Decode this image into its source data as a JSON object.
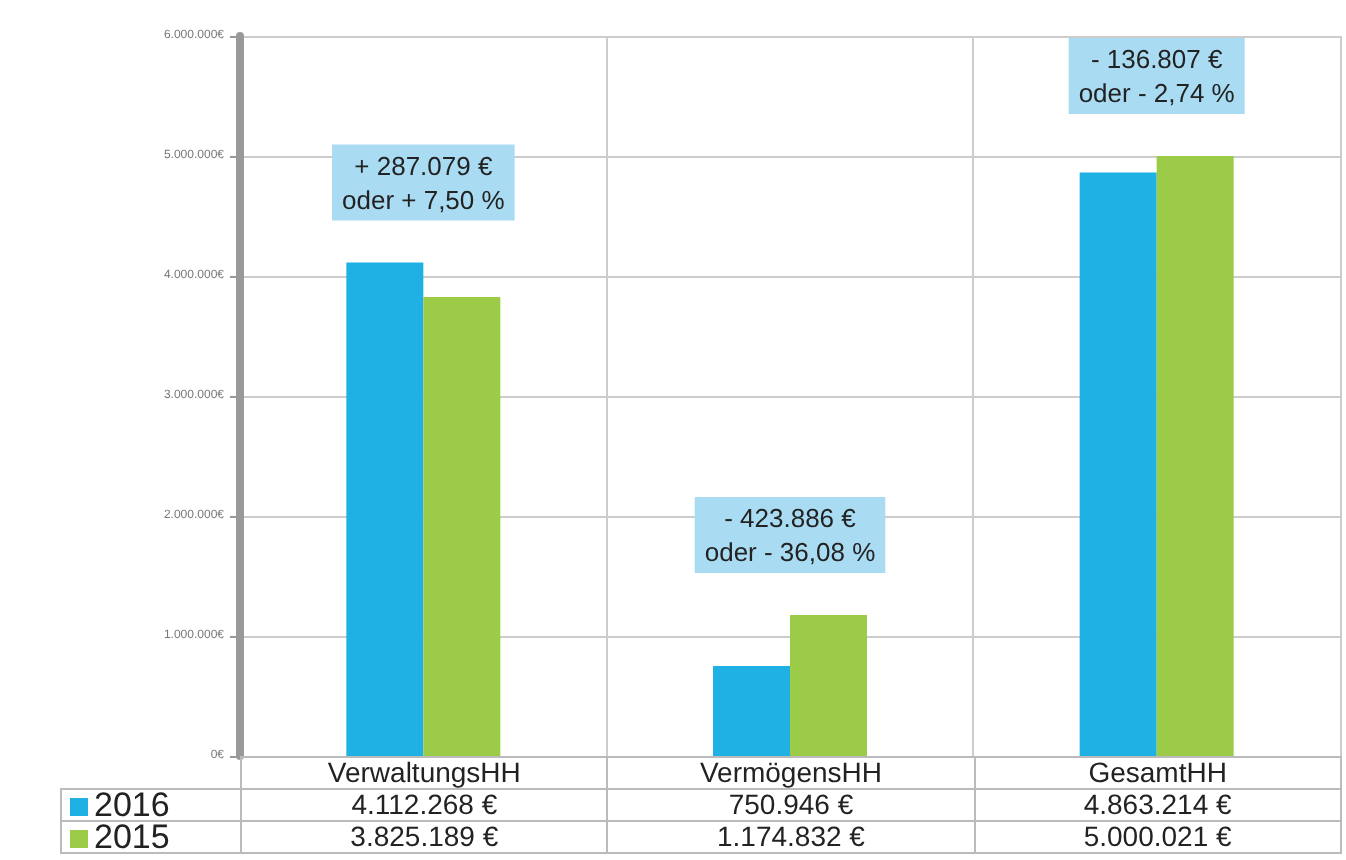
{
  "chart_data": {
    "type": "bar",
    "categories": [
      "VerwaltungsHH",
      "VermögensHH",
      "GesamtHH"
    ],
    "series": [
      {
        "name": "2016",
        "color": "#1fb0e4",
        "values": [
          4112268,
          750946,
          4863214
        ],
        "value_labels": [
          "4.112.268 €",
          "750.946 €",
          "4.863.214 €"
        ]
      },
      {
        "name": "2015",
        "color": "#9ccb48",
        "values": [
          3825189,
          1174832,
          5000021
        ],
        "value_labels": [
          "3.825.189 €",
          "1.174.832 €",
          "5.000.021 €"
        ]
      }
    ],
    "ylim": [
      0,
      6000000
    ],
    "yticks": [
      {
        "value": 0,
        "label": "0€"
      },
      {
        "value": 1000000,
        "label": "1.000.000€"
      },
      {
        "value": 2000000,
        "label": "2.000.000€"
      },
      {
        "value": 3000000,
        "label": "3.000.000€"
      },
      {
        "value": 4000000,
        "label": "4.000.000€"
      },
      {
        "value": 5000000,
        "label": "5.000.000€"
      },
      {
        "value": 6000000,
        "label": "6.000.000€"
      }
    ],
    "annotations": [
      "+ 287.079 €\noder + 7,50 %",
      "- 423.886 €\noder - 36,08 %",
      "- 136.807 €\noder - 2,74 %"
    ],
    "grid": true,
    "legend": "bottom left"
  }
}
